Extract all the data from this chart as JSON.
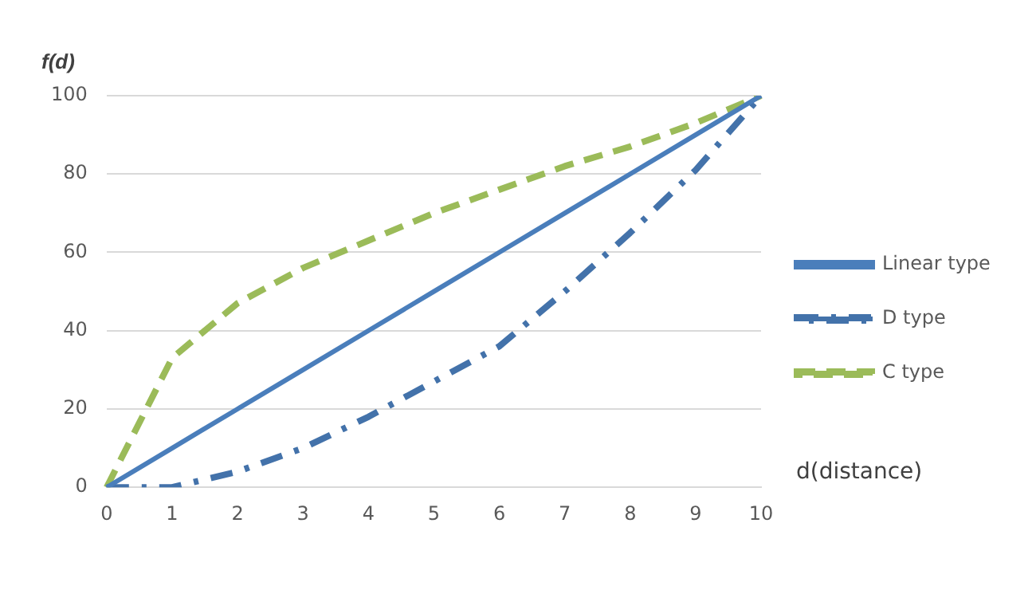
{
  "chart_data": {
    "type": "line",
    "xlabel": "d(distance)",
    "ylabel": "f(d)",
    "categories": [
      "0",
      "1",
      "2",
      "3",
      "4",
      "5",
      "6",
      "7",
      "8",
      "9",
      "10"
    ],
    "series": [
      {
        "name": "Linear type",
        "color": "#4a7ebb",
        "line_style": "solid",
        "values": [
          0,
          10,
          20,
          30,
          40,
          50,
          60,
          70,
          80,
          90,
          100
        ]
      },
      {
        "name": "D type",
        "color": "#4372aa",
        "line_style": "dashdot",
        "values": [
          0,
          0,
          4,
          10,
          18,
          27,
          36,
          50,
          65,
          81,
          100
        ]
      },
      {
        "name": "C type",
        "color": "#9bbb59",
        "line_style": "dashed",
        "values": [
          0,
          33,
          47,
          56,
          63,
          70,
          76,
          82,
          87,
          93,
          100
        ]
      }
    ],
    "ylim": [
      0,
      100
    ],
    "yticks": [
      0,
      20,
      40,
      60,
      80,
      100
    ],
    "grid": "y",
    "legend": "right",
    "marker": "none"
  }
}
